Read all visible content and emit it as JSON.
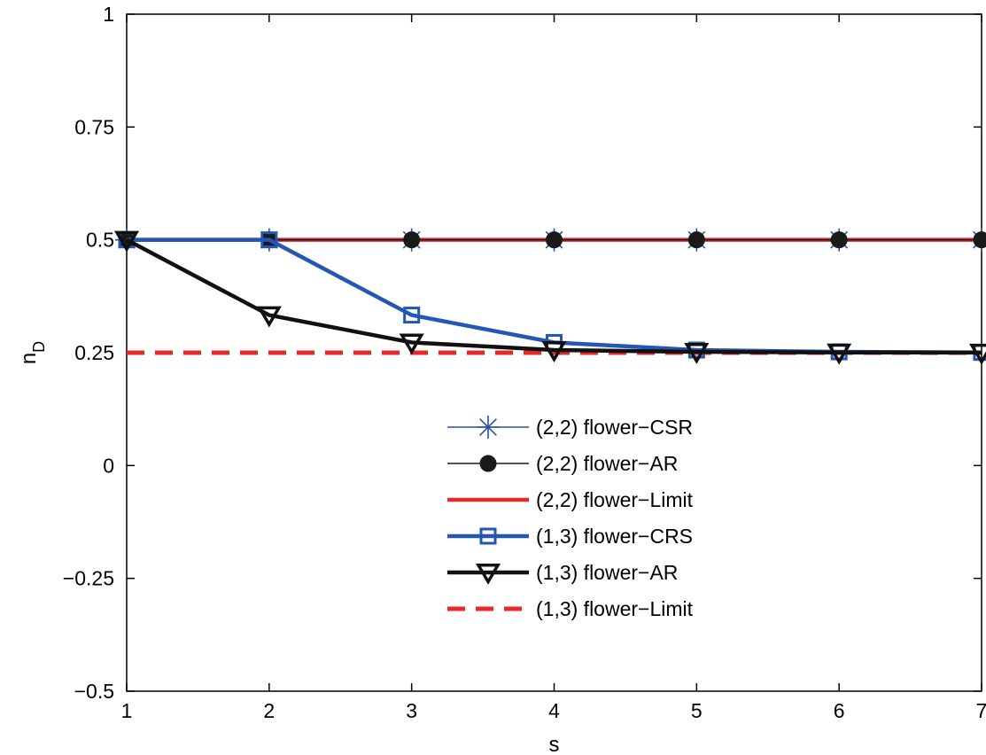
{
  "chart_data": {
    "type": "line",
    "title": "",
    "xlabel": "s",
    "ylabel": "n",
    "ylabel_sub": "D",
    "xlim": [
      1,
      7
    ],
    "ylim": [
      -0.5,
      1
    ],
    "xticks": [
      1,
      2,
      3,
      4,
      5,
      6,
      7
    ],
    "xtick_labels": [
      "1",
      "2",
      "3",
      "4",
      "5",
      "6",
      "7"
    ],
    "yticks": [
      -0.5,
      -0.25,
      0,
      0.25,
      0.5,
      0.75,
      1
    ],
    "ytick_labels": [
      "−0.5",
      "−0.25",
      "0",
      "0.25",
      "0.5",
      "0.75",
      "1"
    ],
    "grid": false,
    "legend_position": "center",
    "x": [
      1,
      2,
      3,
      4,
      5,
      6,
      7
    ],
    "series": [
      {
        "name": "(2,2) flower−CSR",
        "values": [
          0.5,
          0.5,
          0.5,
          0.5,
          0.5,
          0.5,
          0.5
        ],
        "color": "#2a4fae",
        "width": 1.5,
        "marker": "asterisk",
        "dash": "none"
      },
      {
        "name": "(2,2) flower−AR",
        "values": [
          0.5,
          0.5,
          0.5,
          0.5,
          0.5,
          0.5,
          0.5
        ],
        "color": "#1a1a1a",
        "width": 1.5,
        "marker": "dot",
        "dash": "none"
      },
      {
        "name": "(2,2) flower−Limit",
        "values": [
          0.5,
          0.5,
          0.5,
          0.5,
          0.5,
          0.5,
          0.5
        ],
        "color": "#e8292b",
        "width": 4.5,
        "marker": "none",
        "dash": "none"
      },
      {
        "name": "(1,3) flower−CRS",
        "values": [
          0.5,
          0.5,
          0.3333,
          0.2727,
          0.2558,
          0.2519,
          0.2506
        ],
        "color": "#2456b4",
        "width": 4.5,
        "marker": "square",
        "dash": "none"
      },
      {
        "name": "(1,3) flower−AR",
        "values": [
          0.5,
          0.3333,
          0.2727,
          0.2558,
          0.2519,
          0.2506,
          0.2502
        ],
        "color": "#111111",
        "width": 4.5,
        "marker": "triangle-down",
        "dash": "none"
      },
      {
        "name": "(1,3) flower−Limit",
        "values": [
          0.25,
          0.25,
          0.25,
          0.25,
          0.25,
          0.25,
          0.25
        ],
        "color": "#e8292b",
        "width": 5,
        "marker": "none",
        "dash": "dashed"
      }
    ]
  }
}
